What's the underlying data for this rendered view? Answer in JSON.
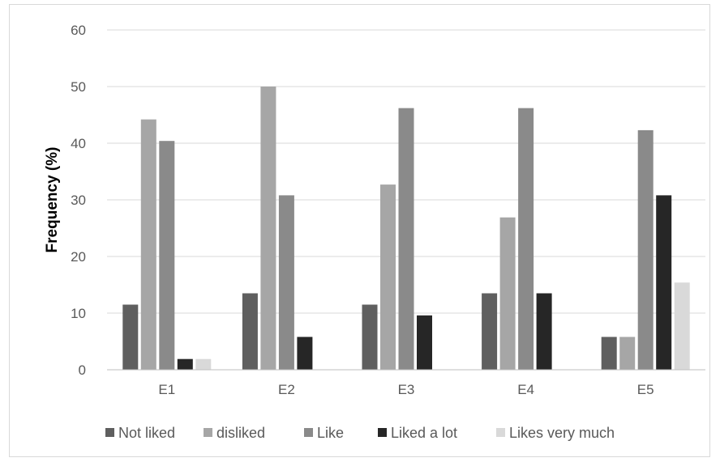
{
  "chart_data": {
    "type": "bar",
    "title": "",
    "xlabel": "",
    "ylabel": "Frequency (%)",
    "ylim": [
      0,
      60
    ],
    "yticks": [
      0,
      10,
      20,
      30,
      40,
      50,
      60
    ],
    "grid": true,
    "legend_position": "bottom",
    "categories": [
      "E1",
      "E2",
      "E3",
      "E4",
      "E5"
    ],
    "series": [
      {
        "name": "Not liked",
        "color": "#5f5f5f",
        "values": [
          11.5,
          13.5,
          11.5,
          13.5,
          5.8
        ]
      },
      {
        "name": "disliked",
        "color": "#a6a6a6",
        "values": [
          44.2,
          50.0,
          32.7,
          26.9,
          5.8
        ]
      },
      {
        "name": "Like",
        "color": "#8a8a8a",
        "values": [
          40.4,
          30.8,
          46.2,
          46.2,
          42.3
        ]
      },
      {
        "name": "Liked a lot",
        "color": "#262626",
        "values": [
          1.9,
          5.8,
          9.6,
          13.5,
          30.8
        ]
      },
      {
        "name": "Likes very much",
        "color": "#d9d9d9",
        "values": [
          1.9,
          0,
          0,
          0,
          15.4
        ]
      }
    ]
  }
}
